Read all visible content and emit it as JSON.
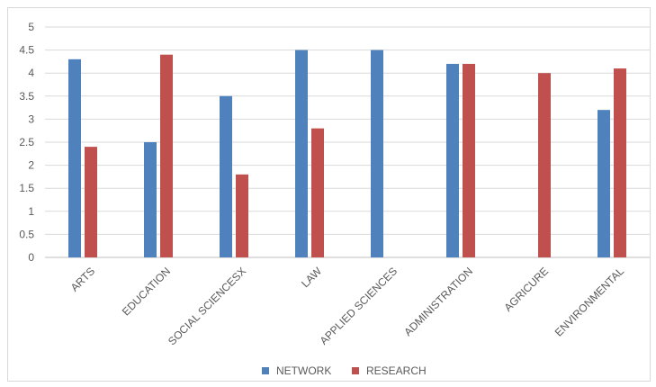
{
  "chart_data": {
    "type": "bar",
    "title": "",
    "xlabel": "",
    "ylabel": "",
    "categories": [
      "ARTS",
      "EDUCATION",
      "SOCIAL SCIENCESX",
      "LAW",
      "APPLIED SCIENCES",
      "ADMINISTRATION",
      "AGRICURE",
      "ENVIRONMENTAL"
    ],
    "series": [
      {
        "name": "NETWORK",
        "color": "#4f81bd",
        "values": [
          4.3,
          2.5,
          3.5,
          4.5,
          4.5,
          4.2,
          null,
          3.2
        ]
      },
      {
        "name": "RESEARCH",
        "color": "#c0504d",
        "values": [
          2.4,
          4.4,
          1.8,
          2.8,
          null,
          4.2,
          4.0,
          4.1
        ]
      }
    ],
    "ylim": [
      0,
      5
    ],
    "yticks": [
      "0",
      "0.5",
      "1",
      "1.5",
      "2",
      "2.5",
      "3",
      "3.5",
      "4",
      "4.5",
      "5"
    ],
    "grid": true,
    "legend": "bottom"
  }
}
